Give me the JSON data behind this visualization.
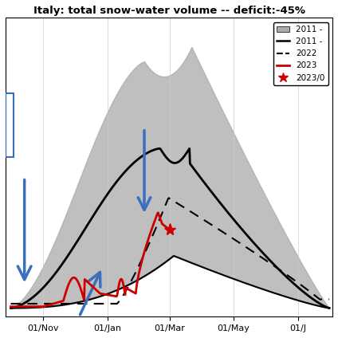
{
  "title": "Italy: total snow-water volume -- deficit:-45%",
  "title_fontsize": 9.5,
  "background_color": "#ffffff",
  "x_ticks": [
    "01/Nov",
    "01/Jan",
    "01/Mar",
    "01/May",
    "01/J"
  ],
  "grid_color": "#cccccc",
  "fill_color": "#aaaaaa",
  "mean_color": "#000000",
  "dashed_color": "#000000",
  "line_2023_color": "#cc0000",
  "star_color": "#cc0000",
  "arrow_color": "#3a6fbf",
  "ylim": [
    0,
    100
  ],
  "xlim_start": 0,
  "xlim_end": 310
}
